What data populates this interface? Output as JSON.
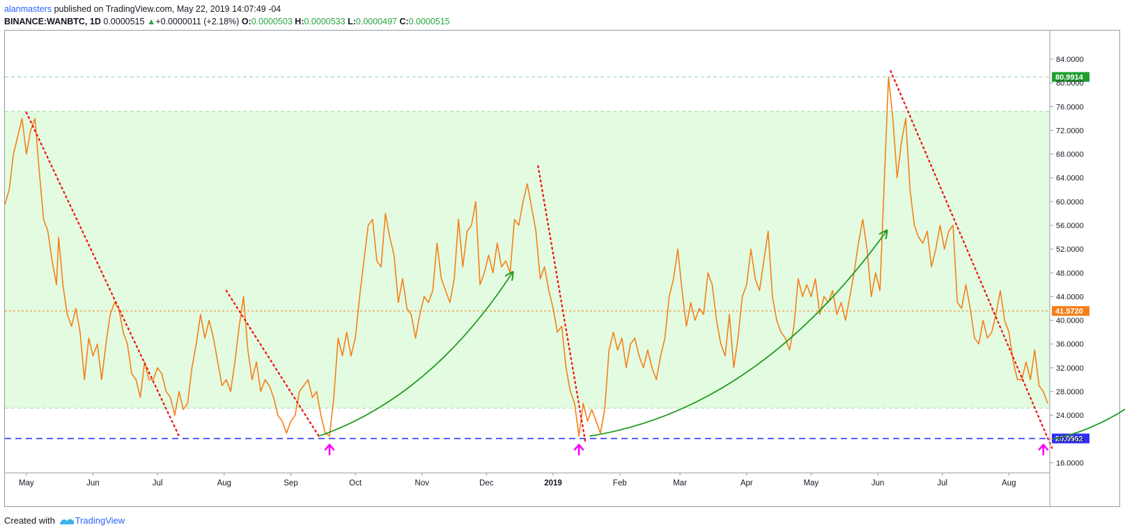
{
  "header": {
    "author": "alanmasters",
    "published_text": "published on TradingView.com, May 22, 2019 14:07:49 -04",
    "symbol": "BINANCE:WANBTC, 1D",
    "price": "0.0000515",
    "change_arrow": "▲",
    "change": "+0.0000011 (+2.18%)",
    "o_label": "O:",
    "o_value": "0.0000503",
    "h_label": "H:",
    "h_value": "0.0000533",
    "l_label": "L:",
    "l_value": "0.0000497",
    "c_label": "C:",
    "c_value": "0.0000515"
  },
  "footer": {
    "created_with": "Created with",
    "brand": "TradingView"
  },
  "colors": {
    "price_line": "#f57f17",
    "zone_fill": "#e3fbe1",
    "support_line": "#2f2ff7",
    "resistance_line": "#2e9a2e",
    "trendline": "#f01b1b",
    "curve": "#1e9a1e",
    "arrow": "#ff00ff"
  },
  "chart_data": {
    "type": "line",
    "y_tick_labels": [
      "84.0000",
      "80.0000",
      "76.0000",
      "72.0000",
      "68.0000",
      "64.0000",
      "60.0000",
      "56.0000",
      "52.0000",
      "48.0000",
      "44.0000",
      "40.0000",
      "36.0000",
      "32.0000",
      "28.0000",
      "24.0000",
      "20.0000",
      "16.0000"
    ],
    "ylim": [
      14.3,
      88.8
    ],
    "x_ticks": [
      {
        "label": "May",
        "day": 0
      },
      {
        "label": "Jun",
        "day": 31
      },
      {
        "label": "Jul",
        "day": 61
      },
      {
        "label": "Aug",
        "day": 92
      },
      {
        "label": "Sep",
        "day": 123
      },
      {
        "label": "Oct",
        "day": 153
      },
      {
        "label": "Nov",
        "day": 184
      },
      {
        "label": "Dec",
        "day": 214
      },
      {
        "label": "2019",
        "day": 245
      },
      {
        "label": "Feb",
        "day": 276
      },
      {
        "label": "Mar",
        "day": 304
      },
      {
        "label": "Apr",
        "day": 335
      },
      {
        "label": "May",
        "day": 365
      },
      {
        "label": "Jun",
        "day": 396
      },
      {
        "label": "Jul",
        "day": 426
      },
      {
        "label": "Aug",
        "day": 457
      }
    ],
    "xlim": [
      -10,
      476
    ],
    "series": [
      {
        "points": [
          [
            -10,
            59.5
          ],
          [
            -8,
            62
          ],
          [
            -6,
            68
          ],
          [
            -4,
            71
          ],
          [
            -2,
            74
          ],
          [
            0,
            68
          ],
          [
            2,
            72
          ],
          [
            4,
            74
          ],
          [
            6,
            65
          ],
          [
            8,
            57
          ],
          [
            10,
            55
          ],
          [
            12,
            50
          ],
          [
            14,
            46
          ],
          [
            15,
            54
          ],
          [
            17,
            46
          ],
          [
            19,
            41
          ],
          [
            21,
            39
          ],
          [
            23,
            42
          ],
          [
            25,
            38
          ],
          [
            27,
            30
          ],
          [
            29,
            37
          ],
          [
            31,
            34
          ],
          [
            33,
            36
          ],
          [
            35,
            30
          ],
          [
            37,
            36
          ],
          [
            39,
            41
          ],
          [
            41,
            43
          ],
          [
            43,
            42
          ],
          [
            45,
            38
          ],
          [
            47,
            36
          ],
          [
            49,
            31
          ],
          [
            51,
            30
          ],
          [
            53,
            27
          ],
          [
            55,
            33
          ],
          [
            57,
            30
          ],
          [
            59,
            30
          ],
          [
            61,
            32
          ],
          [
            63,
            31
          ],
          [
            65,
            28
          ],
          [
            67,
            27
          ],
          [
            69,
            24
          ],
          [
            71,
            28
          ],
          [
            73,
            25
          ],
          [
            75,
            26
          ],
          [
            77,
            32
          ],
          [
            79,
            36
          ],
          [
            81,
            41
          ],
          [
            83,
            37
          ],
          [
            85,
            40
          ],
          [
            87,
            37
          ],
          [
            89,
            33
          ],
          [
            91,
            29
          ],
          [
            93,
            30
          ],
          [
            95,
            28
          ],
          [
            97,
            33
          ],
          [
            99,
            39
          ],
          [
            101,
            44
          ],
          [
            103,
            35
          ],
          [
            105,
            30
          ],
          [
            107,
            33
          ],
          [
            109,
            28
          ],
          [
            111,
            30
          ],
          [
            113,
            29
          ],
          [
            115,
            27
          ],
          [
            117,
            24
          ],
          [
            119,
            23
          ],
          [
            121,
            21
          ],
          [
            123,
            23
          ],
          [
            125,
            24
          ],
          [
            127,
            28
          ],
          [
            129,
            29
          ],
          [
            131,
            30
          ],
          [
            133,
            27
          ],
          [
            135,
            28
          ],
          [
            137,
            24
          ],
          [
            139,
            21
          ],
          [
            141,
            20.5
          ],
          [
            143,
            27
          ],
          [
            145,
            37
          ],
          [
            147,
            34
          ],
          [
            149,
            38
          ],
          [
            151,
            34
          ],
          [
            153,
            37
          ],
          [
            155,
            44
          ],
          [
            157,
            50
          ],
          [
            159,
            56
          ],
          [
            161,
            57
          ],
          [
            163,
            50
          ],
          [
            165,
            49
          ],
          [
            167,
            58
          ],
          [
            169,
            54
          ],
          [
            171,
            51
          ],
          [
            173,
            43
          ],
          [
            175,
            47
          ],
          [
            177,
            42
          ],
          [
            179,
            41
          ],
          [
            181,
            37
          ],
          [
            183,
            41
          ],
          [
            185,
            44
          ],
          [
            187,
            43
          ],
          [
            189,
            45
          ],
          [
            191,
            53
          ],
          [
            193,
            47
          ],
          [
            195,
            45
          ],
          [
            197,
            43
          ],
          [
            199,
            47
          ],
          [
            201,
            57
          ],
          [
            203,
            49
          ],
          [
            205,
            55
          ],
          [
            207,
            56
          ],
          [
            209,
            60
          ],
          [
            211,
            46
          ],
          [
            213,
            48
          ],
          [
            215,
            51
          ],
          [
            217,
            48
          ],
          [
            219,
            53
          ],
          [
            221,
            49
          ],
          [
            223,
            50
          ],
          [
            225,
            48
          ],
          [
            227,
            57
          ],
          [
            229,
            56
          ],
          [
            231,
            60
          ],
          [
            233,
            63
          ],
          [
            235,
            59
          ],
          [
            237,
            55
          ],
          [
            239,
            47
          ],
          [
            241,
            49
          ],
          [
            243,
            45
          ],
          [
            245,
            42
          ],
          [
            247,
            38
          ],
          [
            249,
            39
          ],
          [
            251,
            32
          ],
          [
            253,
            28
          ],
          [
            255,
            26
          ],
          [
            257,
            20.5
          ],
          [
            259,
            26
          ],
          [
            261,
            23
          ],
          [
            263,
            25
          ],
          [
            265,
            23
          ],
          [
            267,
            21
          ],
          [
            269,
            25
          ],
          [
            271,
            35
          ],
          [
            273,
            38
          ],
          [
            275,
            35
          ],
          [
            277,
            37
          ],
          [
            279,
            32
          ],
          [
            281,
            36
          ],
          [
            283,
            37
          ],
          [
            285,
            34
          ],
          [
            287,
            32
          ],
          [
            289,
            35
          ],
          [
            291,
            32
          ],
          [
            293,
            30
          ],
          [
            295,
            34
          ],
          [
            297,
            37
          ],
          [
            299,
            44
          ],
          [
            301,
            47
          ],
          [
            303,
            52
          ],
          [
            305,
            45
          ],
          [
            307,
            39
          ],
          [
            309,
            43
          ],
          [
            311,
            40
          ],
          [
            313,
            42
          ],
          [
            315,
            41
          ],
          [
            317,
            48
          ],
          [
            319,
            46
          ],
          [
            321,
            40
          ],
          [
            323,
            36
          ],
          [
            325,
            34
          ],
          [
            327,
            41
          ],
          [
            329,
            32
          ],
          [
            331,
            37
          ],
          [
            333,
            44
          ],
          [
            335,
            46
          ],
          [
            337,
            52
          ],
          [
            339,
            47
          ],
          [
            341,
            45
          ],
          [
            343,
            50
          ],
          [
            345,
            55
          ],
          [
            347,
            44
          ],
          [
            349,
            40
          ],
          [
            351,
            38
          ],
          [
            353,
            37
          ],
          [
            355,
            35
          ],
          [
            357,
            39
          ],
          [
            359,
            47
          ],
          [
            361,
            44
          ],
          [
            363,
            46
          ],
          [
            365,
            44
          ],
          [
            367,
            47
          ],
          [
            369,
            41
          ],
          [
            371,
            44
          ],
          [
            373,
            43
          ],
          [
            375,
            45
          ],
          [
            377,
            41
          ],
          [
            379,
            43
          ],
          [
            381,
            40
          ],
          [
            383,
            44
          ],
          [
            385,
            48
          ],
          [
            387,
            53
          ],
          [
            389,
            57
          ],
          [
            391,
            52
          ],
          [
            393,
            44
          ],
          [
            395,
            48
          ],
          [
            397,
            45
          ],
          [
            399,
            63
          ],
          [
            401,
            81
          ],
          [
            403,
            74
          ],
          [
            405,
            64
          ],
          [
            407,
            70
          ],
          [
            409,
            74
          ],
          [
            411,
            62
          ],
          [
            413,
            56
          ],
          [
            415,
            54
          ],
          [
            417,
            53
          ],
          [
            419,
            55
          ],
          [
            421,
            49
          ],
          [
            423,
            52
          ],
          [
            425,
            56
          ],
          [
            427,
            52
          ],
          [
            429,
            55
          ],
          [
            431,
            56
          ],
          [
            433,
            43
          ],
          [
            435,
            42
          ],
          [
            437,
            46
          ],
          [
            439,
            42
          ],
          [
            441,
            37
          ],
          [
            443,
            36
          ],
          [
            445,
            40
          ],
          [
            447,
            37
          ],
          [
            449,
            38
          ],
          [
            451,
            41
          ],
          [
            453,
            45
          ],
          [
            455,
            40
          ],
          [
            457,
            38
          ],
          [
            459,
            33
          ],
          [
            461,
            30
          ],
          [
            463,
            30
          ],
          [
            465,
            33
          ],
          [
            467,
            30
          ],
          [
            469,
            35
          ],
          [
            471,
            29
          ],
          [
            473,
            28
          ],
          [
            475,
            26
          ]
        ]
      }
    ],
    "levels": [
      {
        "value": 80.9914,
        "label": "80.9914",
        "kind": "resistance"
      },
      {
        "value": 41.572,
        "label": "41.5720",
        "kind": "current"
      },
      {
        "value": 20.0962,
        "label": "20.0962",
        "kind": "support"
      }
    ],
    "zone": {
      "from": 25.2,
      "to": 75.2
    },
    "zone_edges": [
      75.2,
      25.2
    ]
  }
}
